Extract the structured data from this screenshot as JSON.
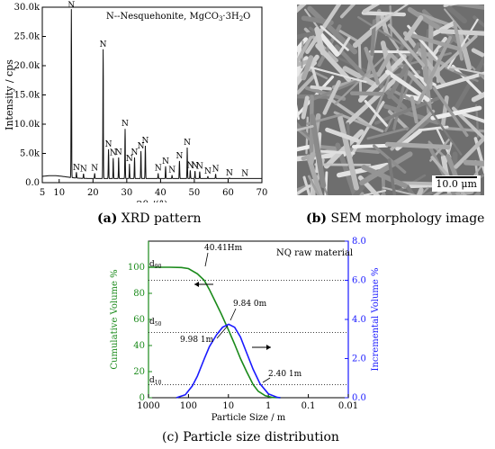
{
  "xrd": {
    "legend": "N--Nesquehonite, MgCO",
    "legend_sub": "3",
    "legend_tail": "·3H",
    "legend_sub2": "2",
    "legend_end": "O",
    "peak_label": "N",
    "caption_letter": "(a)",
    "caption_text": " XRD pattern"
  },
  "sem": {
    "scale": "10.0 μm",
    "caption_letter": "(b)",
    "caption_text": " SEM morphology image"
  },
  "psd": {
    "legend": "NQ raw material",
    "d90_label": "d",
    "d90_sub": "90",
    "d50_label": "d",
    "d50_sub": "50",
    "d10_label": "d",
    "d10_sub": "10",
    "ann_d90": "40.41Hm",
    "ann_peak": "9.84 0m",
    "ann_d50": "9.98 1m",
    "ann_d10": "2.40 1m",
    "caption": "(c) Particle size distribution"
  },
  "chart_data": [
    {
      "type": "line",
      "title": "",
      "xlabel": "2θ /(°)",
      "ylabel": "Intensity / cps",
      "xlim": [
        5,
        70
      ],
      "ylim": [
        0,
        30000
      ],
      "x_ticks": [
        "5",
        "10",
        "20",
        "30",
        "40",
        "50",
        "60",
        "70"
      ],
      "y_ticks": [
        "0.0",
        "5.0k",
        "10.0k",
        "15.0k",
        "20.0k",
        "25.0k",
        "30.0k"
      ],
      "peaks": [
        {
          "x": 13.6,
          "y": 29500
        },
        {
          "x": 15.1,
          "y": 1700
        },
        {
          "x": 17.2,
          "y": 1500
        },
        {
          "x": 20.5,
          "y": 1600
        },
        {
          "x": 23.0,
          "y": 22800
        },
        {
          "x": 24.6,
          "y": 5700
        },
        {
          "x": 26.0,
          "y": 4200
        },
        {
          "x": 27.6,
          "y": 4300
        },
        {
          "x": 29.5,
          "y": 9200
        },
        {
          "x": 30.8,
          "y": 3200
        },
        {
          "x": 32.3,
          "y": 4300
        },
        {
          "x": 34.2,
          "y": 5400
        },
        {
          "x": 35.5,
          "y": 6300
        },
        {
          "x": 39.3,
          "y": 1600
        },
        {
          "x": 41.5,
          "y": 2800
        },
        {
          "x": 43.4,
          "y": 1300
        },
        {
          "x": 45.6,
          "y": 3700
        },
        {
          "x": 47.9,
          "y": 6000
        },
        {
          "x": 48.8,
          "y": 2100
        },
        {
          "x": 50.2,
          "y": 2000
        },
        {
          "x": 51.6,
          "y": 1900
        },
        {
          "x": 54.0,
          "y": 1100
        },
        {
          "x": 56.3,
          "y": 1500
        },
        {
          "x": 60.4,
          "y": 800
        },
        {
          "x": 65.0,
          "y": 700
        }
      ],
      "baseline": 700
    },
    {
      "type": "line",
      "title": "",
      "xlabel": "Particle Size /  m",
      "ylabel": "Cumulative Volume  %",
      "y2label": "Incremental Volume  %",
      "x_scale": "log-reversed",
      "xlim": [
        1000,
        0.01
      ],
      "ylim": [
        0,
        120
      ],
      "y2lim": [
        0,
        8.0
      ],
      "x_ticks": [
        "1000",
        "100",
        "10",
        "1",
        "0.1",
        "0.01"
      ],
      "y_ticks": [
        "0",
        "20",
        "40",
        "60",
        "80",
        "100"
      ],
      "y2_ticks": [
        "0.0",
        "2.0",
        "4.0",
        "6.0",
        "8.0"
      ],
      "reference_lines": [
        90,
        50,
        10
      ],
      "series": [
        {
          "axis": "left",
          "color": "#1a8a1a",
          "x": [
            1000,
            300,
            150,
            100,
            60,
            40.41,
            30,
            20,
            15,
            10,
            7,
            5,
            3.5,
            2.4,
            1.8,
            1.2,
            0.8,
            0.5
          ],
          "y": [
            100,
            100,
            99.8,
            99,
            95,
            90,
            83,
            72,
            64,
            52,
            41,
            30,
            20,
            10,
            5,
            1.5,
            0.2,
            0
          ]
        },
        {
          "axis": "right",
          "color": "#1a1aff",
          "x": [
            200,
            120,
            80,
            60,
            40,
            30,
            20,
            14,
            9.84,
            7,
            5,
            3.5,
            2.4,
            1.6,
            1.0,
            0.6,
            0.5
          ],
          "y": [
            0,
            0.15,
            0.6,
            1.1,
            2.0,
            2.6,
            3.2,
            3.6,
            3.75,
            3.6,
            3.1,
            2.3,
            1.45,
            0.7,
            0.2,
            0.02,
            0
          ]
        }
      ]
    }
  ]
}
